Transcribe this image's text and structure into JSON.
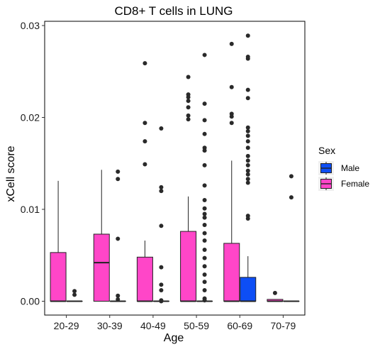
{
  "chart_data": {
    "type": "boxplot",
    "title": "CD8+ T cells in LUNG",
    "xlabel": "Age",
    "ylabel": "xCell score",
    "ylim": [
      -0.0013,
      0.0315
    ],
    "yticks": [
      0.0,
      0.01,
      0.02,
      0.03
    ],
    "ytick_labels": [
      "0.00",
      "0.01",
      "0.02",
      "0.03"
    ],
    "categories": [
      "20-29",
      "30-39",
      "40-49",
      "50-59",
      "60-69",
      "70-79"
    ],
    "grid": false,
    "legend": {
      "title": "Sex",
      "position": "right",
      "entries": [
        {
          "name": "Male",
          "color": "#0d4ef5"
        },
        {
          "name": "Female",
          "color": "#ff46c8"
        }
      ]
    },
    "series": [
      {
        "name": "Female",
        "color": "#ff46c8",
        "boxes": [
          {
            "category": "20-29",
            "min": 0.0,
            "q1": 0.0,
            "median": 0.0,
            "q3": 0.0053,
            "max": 0.0131,
            "outliers": []
          },
          {
            "category": "30-39",
            "min": 0.0,
            "q1": 0.0,
            "median": 0.0042,
            "q3": 0.0073,
            "max": 0.0143,
            "outliers": []
          },
          {
            "category": "40-49",
            "min": 0.0,
            "q1": 0.0,
            "median": 0.0,
            "q3": 0.0048,
            "max": 0.0066,
            "outliers": [
              0.0149,
              0.0174,
              0.0194,
              0.0259
            ]
          },
          {
            "category": "50-59",
            "min": 0.0,
            "q1": 0.0,
            "median": 0.0,
            "q3": 0.0076,
            "max": 0.0114,
            "outliers": [
              0.0198,
              0.0202,
              0.0211,
              0.0218,
              0.0222,
              0.0225,
              0.0244
            ]
          },
          {
            "category": "60-69",
            "min": 0.0,
            "q1": 0.0,
            "median": 0.0,
            "q3": 0.0063,
            "max": 0.0153,
            "outliers": [
              0.0194,
              0.0201,
              0.0204,
              0.0233,
              0.028
            ]
          },
          {
            "category": "70-79",
            "min": 0.0,
            "q1": 0.0,
            "median": 0.0,
            "q3": 0.0002,
            "max": 0.0002,
            "outliers": [
              0.0009
            ]
          }
        ]
      },
      {
        "name": "Male",
        "color": "#0d4ef5",
        "boxes": [
          {
            "category": "20-29",
            "min": 0.0,
            "q1": 0.0,
            "median": 0.0,
            "q3": 0.0,
            "max": 0.0,
            "outliers": [
              0.0007,
              0.0011
            ]
          },
          {
            "category": "30-39",
            "min": 0.0,
            "q1": 0.0,
            "median": 0.0,
            "q3": 0.0,
            "max": 0.0,
            "outliers": [
              0.0002,
              0.0006,
              0.0068,
              0.0133,
              0.0141
            ]
          },
          {
            "category": "40-49",
            "min": 0.0,
            "q1": 0.0,
            "median": 0.0,
            "q3": 0.0,
            "max": 0.0,
            "outliers": [
              0.0,
              0.0001,
              0.0012,
              0.0018,
              0.0037,
              0.0082,
              0.012,
              0.0124,
              0.0188
            ]
          },
          {
            "category": "50-59",
            "min": 0.0,
            "q1": 0.0,
            "median": 0.0,
            "q3": 0.0,
            "max": 0.0,
            "outliers": [
              0.0001,
              0.0003,
              0.0012,
              0.0021,
              0.0029,
              0.0038,
              0.0047,
              0.0056,
              0.0066,
              0.0074,
              0.0083,
              0.0091,
              0.0095,
              0.0101,
              0.011,
              0.0126,
              0.0148,
              0.0164,
              0.0167,
              0.0182,
              0.0197,
              0.0215,
              0.0268
            ]
          },
          {
            "category": "60-69",
            "min": 0.0,
            "q1": 0.0,
            "median": 0.0,
            "q3": 0.0026,
            "max": 0.0049,
            "outliers": [
              0.009,
              0.0093,
              0.0129,
              0.0133,
              0.0138,
              0.0142,
              0.0148,
              0.0153,
              0.0158,
              0.0167,
              0.0174,
              0.018,
              0.0185,
              0.0189,
              0.0221,
              0.023,
              0.0264,
              0.0266,
              0.0289
            ]
          },
          {
            "category": "70-79",
            "min": 0.0,
            "q1": 0.0,
            "median": 0.0,
            "q3": 0.0,
            "max": 0.0,
            "outliers": [
              0.0113,
              0.0136
            ]
          }
        ]
      }
    ]
  }
}
